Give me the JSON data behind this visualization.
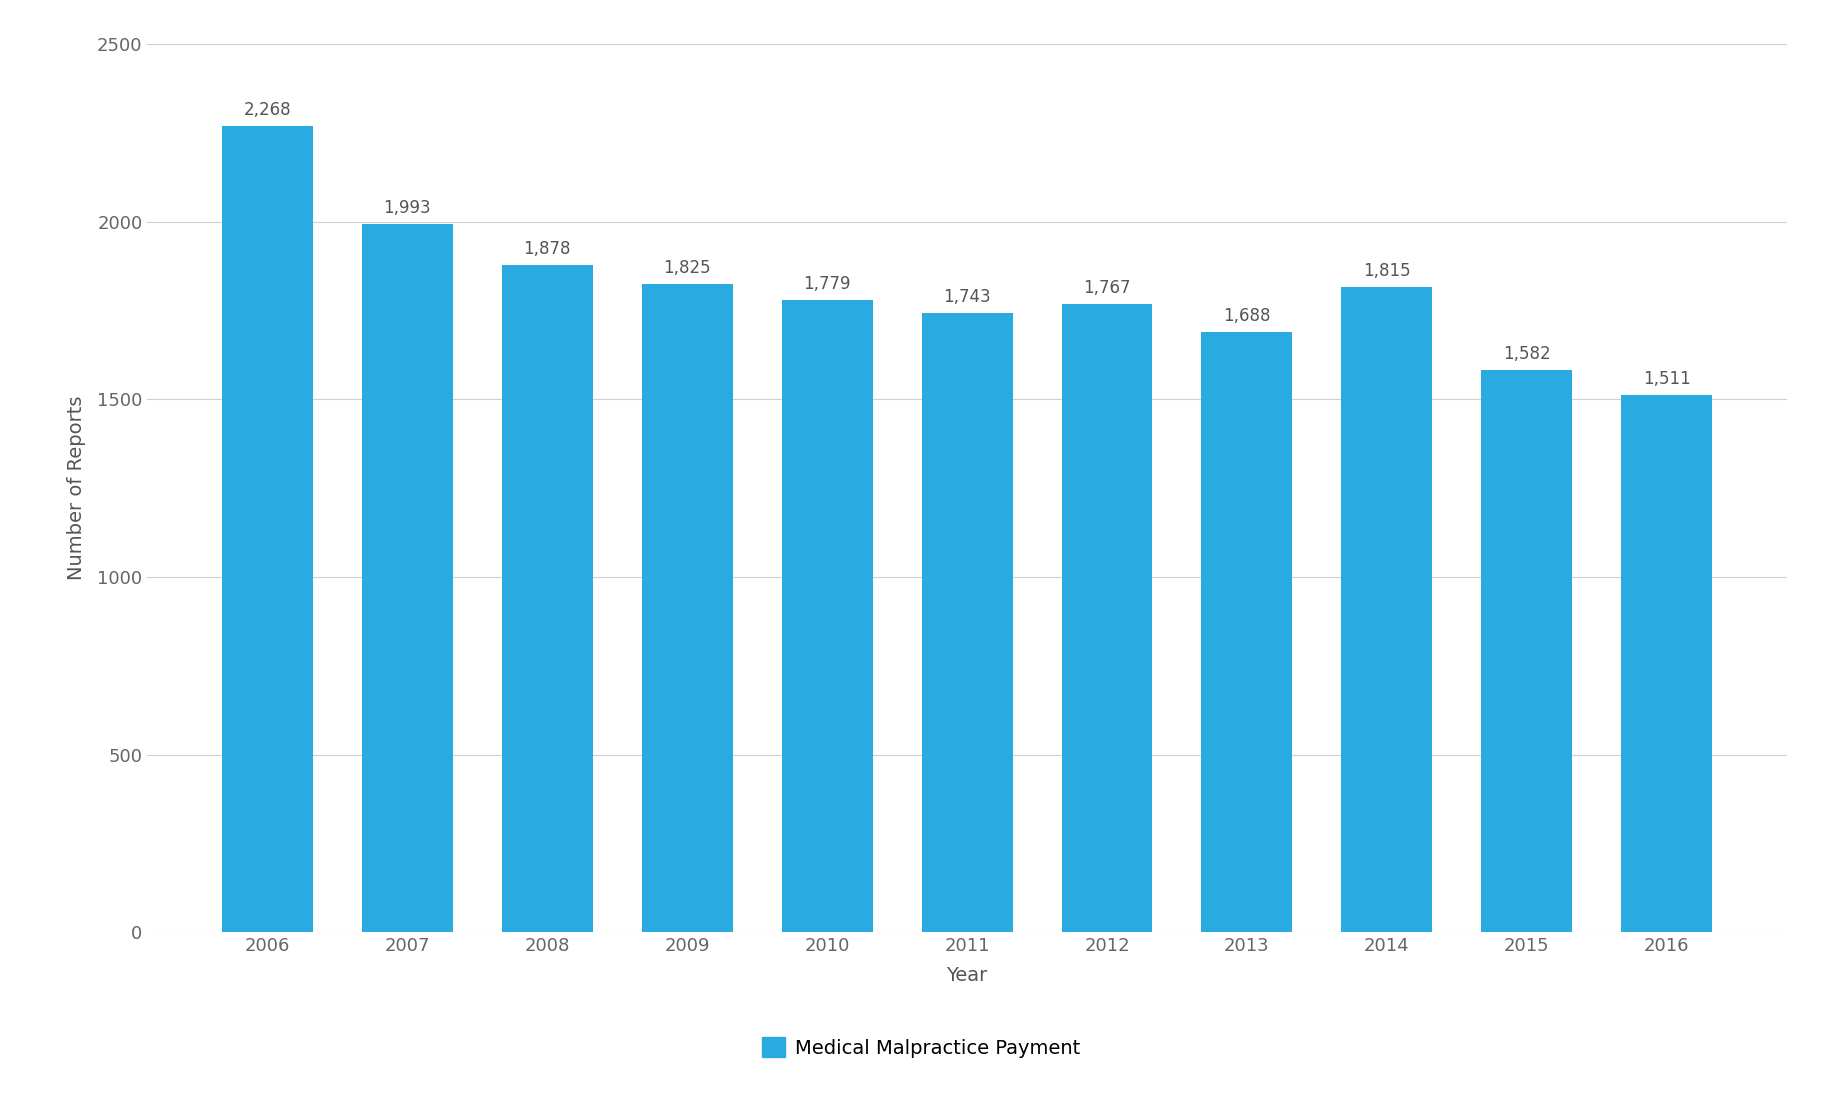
{
  "years": [
    "2006",
    "2007",
    "2008",
    "2009",
    "2010",
    "2011",
    "2012",
    "2013",
    "2014",
    "2015",
    "2016"
  ],
  "values": [
    2268,
    1993,
    1878,
    1825,
    1779,
    1743,
    1767,
    1688,
    1815,
    1582,
    1511
  ],
  "bar_color": "#29ABE2",
  "ylabel": "Number of Reports",
  "xlabel": "Year",
  "legend_label": "Medical Malpractice Payment",
  "ylim": [
    0,
    2500
  ],
  "yticks": [
    0,
    500,
    1000,
    1500,
    2000,
    2500
  ],
  "background_color": "#ffffff",
  "grid_color": "#d0d0d0",
  "tick_label_color": "#666666",
  "axis_label_color": "#555555",
  "bar_label_color": "#555555",
  "bar_label_fontsize": 12,
  "axis_label_fontsize": 14,
  "tick_label_fontsize": 13,
  "legend_fontsize": 14
}
